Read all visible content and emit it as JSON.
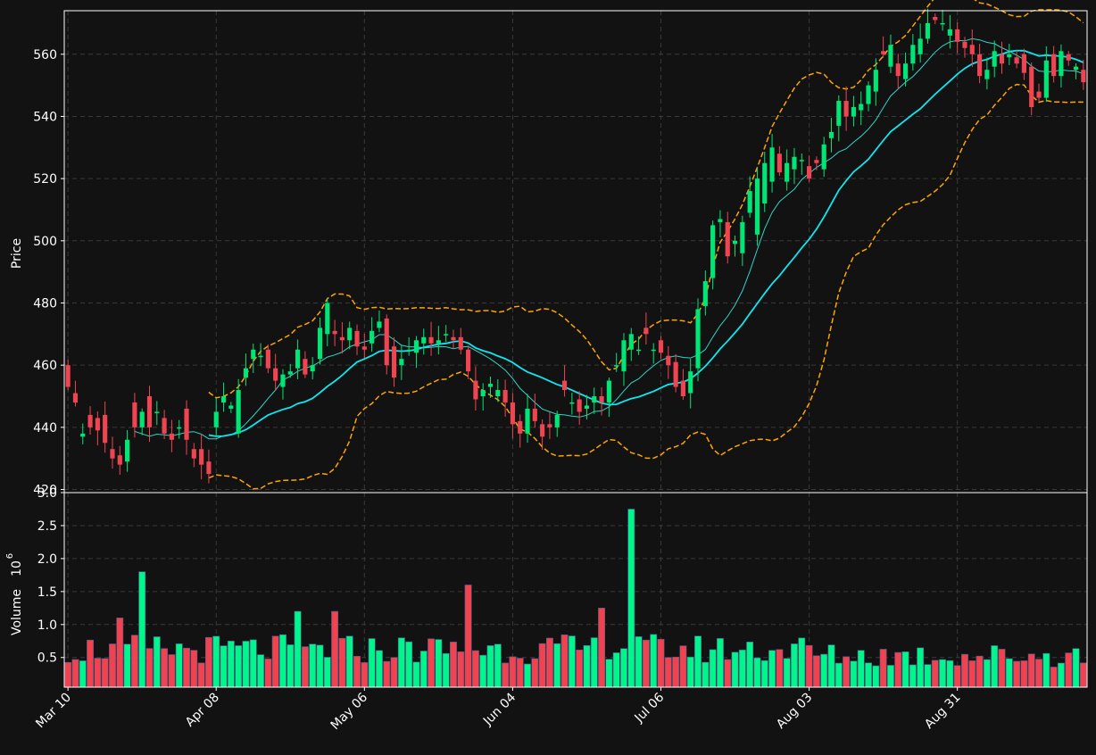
{
  "chart_data": {
    "type": "candlestick",
    "colors": {
      "background": "#121212",
      "up": "#00e676",
      "down": "#ef4552",
      "up_volume": "#00f58c",
      "down_volume": "#f0434f",
      "sma_short": "#2fd6c8",
      "sma_long": "#10e6f0",
      "bollinger": "#ffa500",
      "grid": "#3a3a3a",
      "text": "#ffffff"
    },
    "grid": true,
    "price_panel": {
      "ylabel": "Price",
      "ylim": [
        419,
        574
      ],
      "yticks": [
        420,
        440,
        460,
        480,
        500,
        520,
        540,
        560
      ]
    },
    "volume_panel": {
      "ylabel": "Volume",
      "multiplier_base": "10",
      "multiplier_exp": "6",
      "ylim": [
        0.05,
        3.0
      ],
      "yticks": [
        0.5,
        1.0,
        1.5,
        2.0,
        2.5,
        3.0
      ],
      "ytick_labels": [
        "0.5",
        "1.0",
        "1.5",
        "2.0",
        "2.5",
        "3.0"
      ]
    },
    "x_ticks": [
      {
        "index": 0,
        "label": "Mar 10"
      },
      {
        "index": 20,
        "label": "Apr 08"
      },
      {
        "index": 40,
        "label": "May 06"
      },
      {
        "index": 60,
        "label": "Jun 04"
      },
      {
        "index": 80,
        "label": "Jul 06"
      },
      {
        "index": 100,
        "label": "Aug 03"
      },
      {
        "index": 120,
        "label": "Aug 31"
      }
    ],
    "closes": [
      453.0,
      448.0,
      438.0,
      440.0,
      439.0,
      435.0,
      430.0,
      428.0,
      436.0,
      440.0,
      445.0,
      440.0,
      445.0,
      438.0,
      436.0,
      440.0,
      436.0,
      430.0,
      428.0,
      425.0,
      445.0,
      450.0,
      447.0,
      452.0,
      459.0,
      465.0,
      463.0,
      459.0,
      455.0,
      457.0,
      458.0,
      465.0,
      457.0,
      460.0,
      472.0,
      480.0,
      470.0,
      468.0,
      472.0,
      466.0,
      465.0,
      471.0,
      474.0,
      460.0,
      456.0,
      462.0,
      465.0,
      468.0,
      469.0,
      467.0,
      468.0,
      470.0,
      468.0,
      465.0,
      458.0,
      449.0,
      452.0,
      454.0,
      452.0,
      448.0,
      441.0,
      438.0,
      446.0,
      442.0,
      437.0,
      440.0,
      444.0,
      452.0,
      448.0,
      445.0,
      447.0,
      450.0,
      448.0,
      455.0,
      460.0,
      468.0,
      470.0,
      465.0,
      470.0,
      465.0,
      464.0,
      460.0,
      453.0,
      450.0,
      458.0,
      478.0,
      487.0,
      505.0,
      507.0,
      495.0,
      500.0,
      506.0,
      516.0,
      520.0,
      525.0,
      530.0,
      522.0,
      525.0,
      527.0,
      526.0,
      520.0,
      525.0,
      531.0,
      535.0,
      545.0,
      540.0,
      543.0,
      544.0,
      550.0,
      555.0,
      560.0,
      563.0,
      553.0,
      557.0,
      563.0,
      565.0,
      570.0,
      571.0,
      570.0,
      568.0,
      564.0,
      562.0,
      560.0,
      553.0,
      555.0,
      561.0,
      557.0,
      560.0,
      557.0,
      554.0,
      543.0,
      546.0,
      558.0,
      553.0,
      561.0,
      558.0,
      556.0,
      551.0
    ],
    "opens": [
      460.0,
      451.0,
      437.0,
      444.0,
      443.0,
      444.0,
      433.0,
      431.0,
      429.0,
      448.0,
      440.0,
      450.0,
      445.0,
      443.0,
      438.0,
      440.0,
      446.0,
      433.0,
      433.0,
      429.0,
      440.0,
      448.0,
      446.0,
      438.0,
      456.0,
      462.0,
      463.0,
      465.0,
      459.0,
      453.0,
      457.0,
      459.0,
      462.0,
      458.0,
      462.0,
      470.0,
      471.0,
      469.0,
      468.0,
      471.0,
      466.0,
      467.0,
      472.0,
      475.0,
      466.0,
      460.0,
      465.0,
      464.0,
      467.0,
      469.0,
      467.0,
      470.0,
      469.0,
      469.0,
      465.0,
      455.0,
      450.0,
      453.0,
      450.0,
      452.0,
      448.0,
      442.0,
      438.0,
      446.0,
      441.0,
      441.0,
      440.0,
      455.0,
      448.0,
      449.0,
      446.0,
      448.0,
      450.0,
      448.0,
      460.0,
      458.0,
      465.0,
      465.0,
      472.0,
      465.0,
      468.0,
      463.0,
      461.0,
      455.0,
      451.0,
      459.0,
      479.0,
      488.0,
      506.0,
      506.0,
      499.0,
      496.0,
      509.0,
      502.0,
      512.0,
      519.0,
      528.0,
      519.0,
      523.0,
      526.0,
      524.0,
      526.0,
      523.0,
      533.0,
      537.0,
      545.0,
      540.0,
      542.0,
      544.0,
      548.0,
      561.0,
      556.0,
      557.0,
      552.0,
      557.0,
      560.0,
      565.0,
      572.0,
      570.0,
      566.0,
      568.0,
      564.0,
      563.0,
      560.0,
      552.0,
      556.0,
      560.0,
      559.0,
      559.0,
      560.0,
      556.0,
      548.0,
      546.0,
      560.0,
      553.0,
      560.0,
      555.0,
      555.0
    ]
  }
}
